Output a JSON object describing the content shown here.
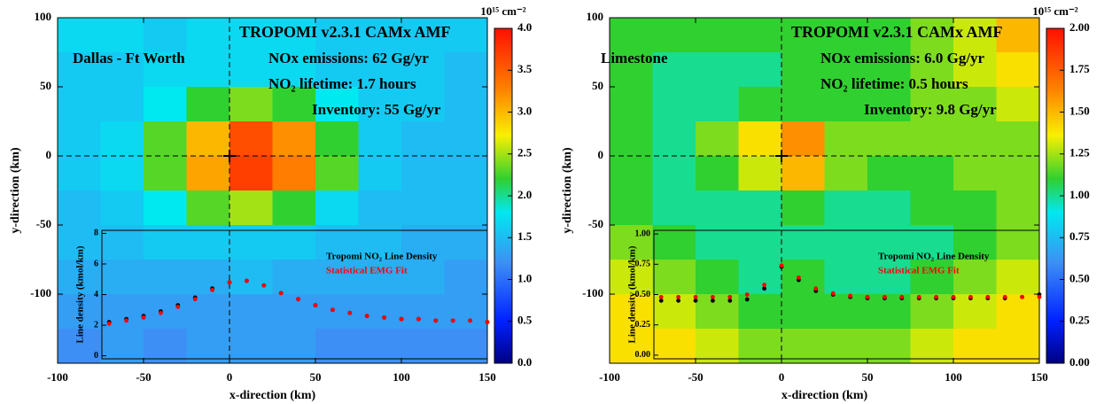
{
  "chart_data": [
    {
      "type": "heatmap",
      "title": "TROPOMI v2.3.1 CAMx AMF",
      "annotations": [
        "Dallas - Ft Worth",
        "NOx emissions:  62 Gg/yr",
        "NO₂ lifetime: 1.7 hours",
        "Inventory: 55 Gg/yr"
      ],
      "x_label": "x-direction (km)",
      "y_label": "y-direction (km)",
      "xlim": [
        -100,
        150
      ],
      "ylim": [
        -150,
        100
      ],
      "xticks": [
        -100,
        -50,
        0,
        50,
        100,
        150
      ],
      "yticks": [
        -100,
        -50,
        0,
        50,
        100
      ],
      "colorbar": {
        "label": "10¹⁵ cm⁻²",
        "lim": [
          0,
          4
        ],
        "ticks": [
          {
            "value": 0,
            "label": "0.0"
          },
          {
            "value": 0.5,
            "label": "0.5"
          },
          {
            "value": 1,
            "label": "1.0"
          },
          {
            "value": 1.5,
            "label": "1.5"
          },
          {
            "value": 2,
            "label": "2.0"
          },
          {
            "value": 2.5,
            "label": "2.5"
          },
          {
            "value": 3,
            "label": "3.0"
          },
          {
            "value": 3.5,
            "label": "3.5"
          },
          {
            "value": 4,
            "label": "4.0"
          }
        ],
        "colorscale": [
          [
            0,
            "#000080"
          ],
          [
            0.125,
            "#0020ff"
          ],
          [
            0.3,
            "#3d8ff5"
          ],
          [
            0.45,
            "#00e8f0"
          ],
          [
            0.55,
            "#30d030"
          ],
          [
            0.68,
            "#f8f000"
          ],
          [
            0.82,
            "#ff8000"
          ],
          [
            1,
            "#ff1000"
          ]
        ]
      },
      "z": {
        "x_edges": [
          -100,
          -75,
          -50,
          -25,
          0,
          25,
          50,
          75,
          100,
          125,
          150
        ],
        "y_edges": [
          100,
          75,
          50,
          25,
          0,
          -25,
          -50,
          -75,
          -100,
          -125,
          -150
        ],
        "values": [
          [
            1.7,
            1.7,
            1.6,
            1.7,
            1.7,
            1.7,
            1.6,
            1.6,
            1.6,
            1.6
          ],
          [
            1.6,
            1.6,
            1.7,
            1.7,
            1.7,
            1.7,
            1.6,
            1.6,
            1.6,
            1.5
          ],
          [
            1.6,
            1.6,
            1.8,
            2.2,
            2.4,
            2.2,
            1.8,
            1.6,
            1.6,
            1.5
          ],
          [
            1.6,
            1.7,
            2.3,
            3.0,
            3.6,
            3.2,
            2.2,
            1.6,
            1.5,
            1.5
          ],
          [
            1.6,
            1.7,
            2.3,
            3.1,
            3.7,
            3.3,
            2.3,
            1.6,
            1.5,
            1.5
          ],
          [
            1.5,
            1.6,
            1.8,
            2.3,
            2.5,
            2.2,
            1.7,
            1.5,
            1.5,
            1.5
          ],
          [
            1.5,
            1.5,
            1.6,
            1.6,
            1.6,
            1.6,
            1.5,
            1.5,
            1.4,
            1.4
          ],
          [
            1.4,
            1.4,
            1.4,
            1.4,
            1.5,
            1.4,
            1.4,
            1.4,
            1.4,
            1.3
          ],
          [
            1.3,
            1.3,
            1.3,
            1.3,
            1.3,
            1.3,
            1.3,
            1.3,
            1.3,
            1.3
          ],
          [
            1.2,
            1.3,
            1.2,
            1.3,
            1.3,
            1.3,
            1.2,
            1.2,
            1.2,
            1.2
          ]
        ]
      },
      "inset": {
        "type": "scatter",
        "y_label": "Line density (kmol/km)",
        "ylim": [
          -0.2,
          8.2
        ],
        "yticks": [
          0,
          2,
          4,
          6,
          8
        ],
        "x": [
          -70,
          -60,
          -50,
          -40,
          -30,
          -20,
          -10,
          0,
          10,
          20,
          30,
          40,
          50,
          60,
          70,
          80,
          90,
          100,
          110,
          120,
          130,
          140,
          150
        ],
        "series": [
          {
            "name": "Tropomi NO₂ Line Density",
            "color": "#000000",
            "values": [
              2.2,
              2.4,
              2.6,
              2.9,
              3.3,
              3.8,
              4.4,
              4.8,
              4.9,
              4.6,
              4.1,
              3.7,
              3.3,
              3.0,
              2.8,
              2.6,
              2.5,
              2.4,
              2.4,
              2.3,
              2.3,
              2.3,
              2.2
            ]
          },
          {
            "name": "Statistical EMG Fit",
            "color": "#ff0000",
            "values": [
              2.1,
              2.3,
              2.5,
              2.8,
              3.2,
              3.7,
              4.3,
              4.8,
              4.9,
              4.6,
              4.1,
              3.7,
              3.3,
              3.0,
              2.8,
              2.6,
              2.5,
              2.4,
              2.4,
              2.3,
              2.3,
              2.3,
              2.2
            ]
          }
        ]
      }
    },
    {
      "type": "heatmap",
      "title": "TROPOMI v2.3.1 CAMx AMF",
      "annotations": [
        "Limestone",
        "NOx emissions: 6.0 Gg/yr",
        "NO₂ lifetime: 0.5 hours",
        "Inventory: 9.8 Gg/yr"
      ],
      "x_label": "x-direction (km)",
      "y_label": "y-direction (km)",
      "xlim": [
        -100,
        150
      ],
      "ylim": [
        -150,
        100
      ],
      "xticks": [
        -100,
        -50,
        0,
        50,
        100,
        150
      ],
      "yticks": [
        -100,
        -50,
        0,
        50,
        100
      ],
      "colorbar": {
        "label": "10¹⁵ cm⁻²",
        "lim": [
          0,
          2
        ],
        "ticks": [
          {
            "value": 0,
            "label": "0.00"
          },
          {
            "value": 0.25,
            "label": "0.25"
          },
          {
            "value": 0.5,
            "label": "0.50"
          },
          {
            "value": 0.75,
            "label": "0.75"
          },
          {
            "value": 1,
            "label": "1.00"
          },
          {
            "value": 1.25,
            "label": "1.25"
          },
          {
            "value": 1.5,
            "label": "1.50"
          },
          {
            "value": 1.75,
            "label": "1.75"
          },
          {
            "value": 2,
            "label": "2.00"
          }
        ],
        "colorscale": [
          [
            0,
            "#000080"
          ],
          [
            0.125,
            "#0020ff"
          ],
          [
            0.3,
            "#3d8ff5"
          ],
          [
            0.45,
            "#00e8f0"
          ],
          [
            0.55,
            "#30d030"
          ],
          [
            0.68,
            "#f8f000"
          ],
          [
            0.82,
            "#ff8000"
          ],
          [
            1,
            "#ff1000"
          ]
        ]
      },
      "z": {
        "x_edges": [
          -100,
          -75,
          -50,
          -25,
          0,
          25,
          50,
          75,
          100,
          125,
          150
        ],
        "y_edges": [
          100,
          75,
          50,
          25,
          0,
          -25,
          -50,
          -75,
          -100,
          -125,
          -150
        ],
        "values": [
          [
            1.1,
            1.1,
            1.1,
            1.1,
            1.1,
            1.1,
            1.1,
            1.2,
            1.3,
            1.5
          ],
          [
            1.1,
            1.0,
            1.0,
            1.0,
            1.1,
            1.1,
            1.1,
            1.2,
            1.3,
            1.4
          ],
          [
            1.1,
            1.0,
            1.0,
            1.1,
            1.1,
            1.1,
            1.1,
            1.2,
            1.2,
            1.3
          ],
          [
            1.1,
            1.0,
            1.2,
            1.4,
            1.6,
            1.2,
            1.2,
            1.2,
            1.2,
            1.2
          ],
          [
            1.1,
            1.0,
            1.1,
            1.3,
            1.5,
            1.2,
            1.1,
            1.1,
            1.2,
            1.2
          ],
          [
            1.1,
            1.0,
            1.0,
            1.0,
            1.1,
            1.0,
            1.0,
            1.1,
            1.1,
            1.2
          ],
          [
            1.2,
            1.1,
            1.0,
            1.0,
            1.0,
            1.0,
            1.0,
            1.0,
            1.1,
            1.2
          ],
          [
            1.3,
            1.2,
            1.1,
            1.0,
            1.1,
            1.0,
            1.0,
            1.1,
            1.2,
            1.3
          ],
          [
            1.4,
            1.3,
            1.2,
            1.1,
            1.1,
            1.1,
            1.1,
            1.2,
            1.3,
            1.4
          ],
          [
            1.4,
            1.4,
            1.3,
            1.2,
            1.2,
            1.2,
            1.2,
            1.3,
            1.4,
            1.4
          ]
        ]
      },
      "inset": {
        "type": "scatter",
        "y_label": "Line density (kmol/km)",
        "ylim": [
          -0.03,
          1.03
        ],
        "yticks": [
          {
            "value": 0,
            "label": "0.00"
          },
          {
            "value": 0.25,
            "label": "0.25"
          },
          {
            "value": 0.5,
            "label": "0.50"
          },
          {
            "value": 0.75,
            "label": "0.75"
          },
          {
            "value": 1,
            "label": "1.00"
          }
        ],
        "x": [
          -70,
          -60,
          -50,
          -40,
          -30,
          -20,
          -10,
          0,
          10,
          20,
          30,
          40,
          50,
          60,
          70,
          80,
          90,
          100,
          110,
          120,
          130,
          140,
          150
        ],
        "series": [
          {
            "name": "Tropomi NO₂ Line Density",
            "color": "#000000",
            "values": [
              0.45,
              0.45,
              0.45,
              0.45,
              0.45,
              0.46,
              0.55,
              0.73,
              0.62,
              0.53,
              0.5,
              0.48,
              0.47,
              0.47,
              0.47,
              0.47,
              0.47,
              0.47,
              0.47,
              0.47,
              0.47,
              0.48,
              0.5
            ]
          },
          {
            "name": "Statistical EMG Fit",
            "color": "#ff0000",
            "values": [
              0.48,
              0.48,
              0.48,
              0.48,
              0.48,
              0.5,
              0.58,
              0.74,
              0.64,
              0.55,
              0.51,
              0.49,
              0.48,
              0.48,
              0.48,
              0.48,
              0.48,
              0.48,
              0.48,
              0.48,
              0.48,
              0.48,
              0.48
            ]
          }
        ]
      }
    }
  ]
}
